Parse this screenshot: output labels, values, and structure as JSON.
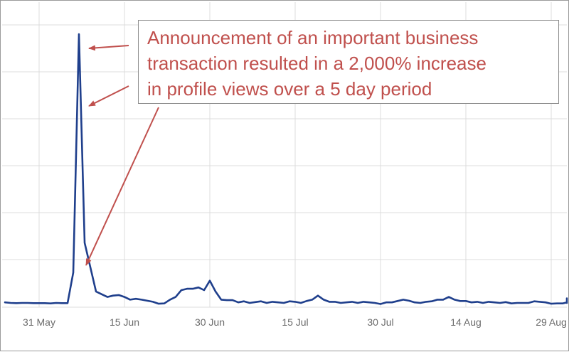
{
  "chart_data": {
    "type": "line",
    "title": "",
    "xlabel": "",
    "ylabel": "",
    "x_ticks": [
      "31 May",
      "15 Jun",
      "30 Jun",
      "15 Jul",
      "30 Jul",
      "14 Aug",
      "29 Aug"
    ],
    "x_start": "2020-05-25",
    "ylim": [
      0,
      100
    ],
    "grid": {
      "vertical": true,
      "horizontal": true
    },
    "colors": {
      "line": "#1f3f8c",
      "grid": "#dcdcdc",
      "annotation": "#c0504d"
    },
    "series": [
      {
        "values": [
          1.0,
          0.8,
          0.7,
          0.8,
          0.8,
          0.7,
          0.7,
          0.7,
          0.6,
          0.8,
          0.7,
          0.7,
          12.0,
          100,
          23.0,
          14.0,
          5.0,
          4.0,
          3.0,
          3.5,
          3.7,
          3.0,
          2.0,
          2.3,
          2.0,
          1.6,
          1.2,
          0.5,
          0.6,
          2.0,
          3.0,
          5.5,
          6.0,
          6.0,
          6.5,
          5.5,
          9.0,
          5.0,
          2.0,
          1.8,
          1.8,
          1.0,
          1.4,
          0.8,
          1.1,
          1.4,
          0.8,
          1.2,
          1.0,
          0.8,
          1.4,
          1.2,
          0.8,
          1.5,
          2.0,
          3.5,
          2.0,
          1.2,
          1.2,
          0.8,
          1.0,
          1.2,
          0.8,
          1.2,
          1.0,
          0.8,
          0.4,
          1.0,
          1.0,
          1.5,
          2.0,
          1.6,
          1.0,
          0.8,
          1.2,
          1.4,
          2.0,
          2.0,
          3.0,
          2.0,
          1.5,
          1.5,
          1.0,
          1.2,
          0.8,
          1.2,
          1.0,
          0.8,
          1.1,
          0.6,
          0.8,
          0.8,
          0.8,
          1.4,
          1.2,
          1.0,
          0.5,
          0.6,
          0.6,
          1.0,
          1.4,
          0.8,
          2.0,
          2.5,
          2.0,
          1.4,
          1.0,
          1.2,
          0.8,
          1.0,
          1.4,
          1.2,
          1.5
        ]
      }
    ],
    "annotation": {
      "lines": [
        "Announcement of an important business",
        "transaction resulted in a 2,000% increase",
        "in profile views over a 5 day period"
      ]
    }
  }
}
